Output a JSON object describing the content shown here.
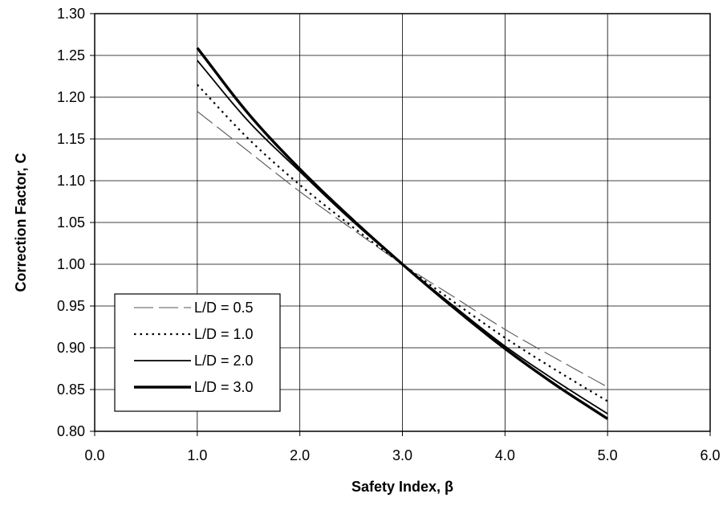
{
  "chart_data": {
    "type": "line",
    "title": "",
    "xlabel": "Safety Index, β",
    "ylabel": "Correction Factor, C",
    "xlim": [
      0.0,
      6.0
    ],
    "ylim": [
      0.8,
      1.3
    ],
    "xticks": [
      0.0,
      1.0,
      2.0,
      3.0,
      4.0,
      5.0,
      6.0
    ],
    "xtick_labels": [
      "0.0",
      "1.0",
      "2.0",
      "3.0",
      "4.0",
      "5.0",
      "6.0"
    ],
    "yticks": [
      0.8,
      0.85,
      0.9,
      0.95,
      1.0,
      1.05,
      1.1,
      1.15,
      1.2,
      1.25,
      1.3
    ],
    "ytick_labels": [
      "0.80",
      "0.85",
      "0.90",
      "0.95",
      "1.00",
      "1.05",
      "1.10",
      "1.15",
      "1.20",
      "1.25",
      "1.30"
    ],
    "grid": true,
    "legend_position": "bottom-left",
    "x": [
      1.0,
      1.5,
      2.0,
      2.5,
      3.0,
      3.5,
      4.0,
      4.5,
      5.0
    ],
    "series": [
      {
        "name": "L/D = 0.5",
        "style": "long-dash",
        "color": "#555555",
        "values": [
          1.183,
          1.135,
          1.087,
          1.043,
          1.0,
          0.961,
          0.922,
          0.887,
          0.853
        ]
      },
      {
        "name": "L/D = 1.0",
        "style": "dotted",
        "color": "#000000",
        "values": [
          1.215,
          1.15,
          1.095,
          1.046,
          1.0,
          0.955,
          0.912,
          0.873,
          0.836
        ]
      },
      {
        "name": "L/D = 2.0",
        "style": "thin-solid",
        "color": "#000000",
        "values": [
          1.244,
          1.171,
          1.111,
          1.053,
          1.0,
          0.95,
          0.902,
          0.86,
          0.821
        ]
      },
      {
        "name": "L/D = 3.0",
        "style": "thick-solid",
        "color": "#000000",
        "values": [
          1.259,
          1.18,
          1.114,
          1.055,
          1.0,
          0.948,
          0.899,
          0.855,
          0.815
        ]
      }
    ]
  }
}
